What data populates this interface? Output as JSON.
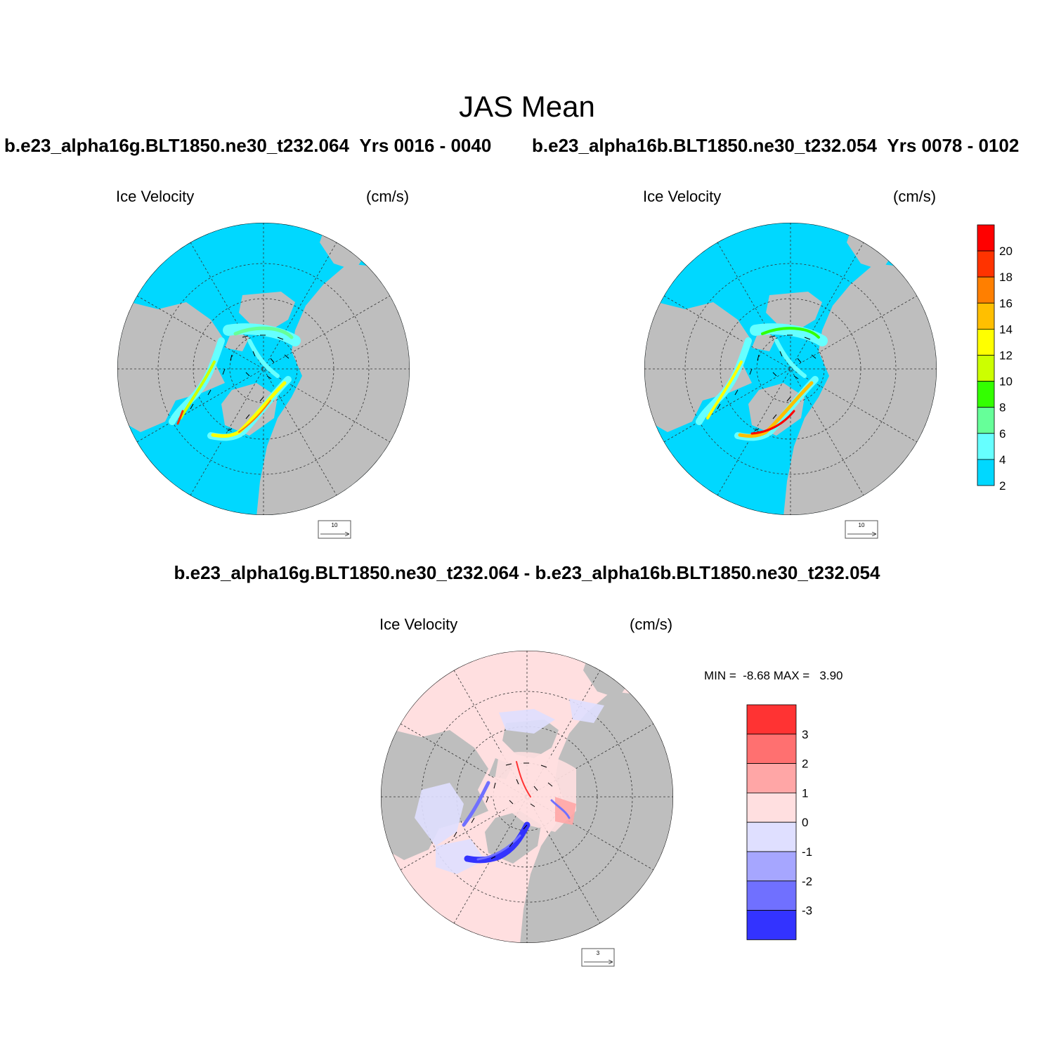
{
  "figure": {
    "main_title": "JAS Mean",
    "case_a": {
      "name": "b.e23_alpha16g.BLT1850.ne30_t232.064",
      "years": "Yrs 0016 - 0040"
    },
    "case_b": {
      "name": "b.e23_alpha16b.BLT1850.ne30_t232.054",
      "years": "Yrs 0078 - 0102"
    },
    "diff_title": "b.e23_alpha16g.BLT1850.ne30_t232.064 - b.e23_alpha16b.BLT1850.ne30_t232.054"
  },
  "panels": [
    {
      "id": "case-a",
      "field": "Ice Velocity",
      "units": "(cm/s)",
      "ref_vector": "10",
      "ocean_color": "#00d8ff",
      "land_color": "#bebebe"
    },
    {
      "id": "case-b",
      "field": "Ice Velocity",
      "units": "(cm/s)",
      "ref_vector": "10",
      "ocean_color": "#00d8ff",
      "land_color": "#bebebe"
    },
    {
      "id": "difference",
      "field": "Ice Velocity",
      "units": "(cm/s)",
      "ref_vector": "3",
      "ocean_color": "#ffdfe0",
      "land_color": "#bebebe",
      "min_label": "MIN =",
      "min_value": "-8.68",
      "max_label": "MAX =",
      "max_value": "3.90"
    }
  ],
  "colorbar_speed": {
    "labels": [
      "20",
      "18",
      "16",
      "14",
      "12",
      "10",
      "8",
      "6",
      "4",
      "2"
    ],
    "colors": [
      "#ff0000",
      "#ff3300",
      "#ff7f00",
      "#ffbf00",
      "#ffff00",
      "#ccff00",
      "#33ff00",
      "#66ff99",
      "#66ffff",
      "#00d8ff"
    ]
  },
  "colorbar_diff": {
    "labels": [
      "3",
      "2",
      "1",
      "0",
      "-1",
      "-2",
      "-3"
    ],
    "colors": [
      "#ff3333",
      "#ff7070",
      "#ffa6a6",
      "#ffdfe0",
      "#dfdfff",
      "#a6a6ff",
      "#7070ff",
      "#3333ff"
    ]
  }
}
